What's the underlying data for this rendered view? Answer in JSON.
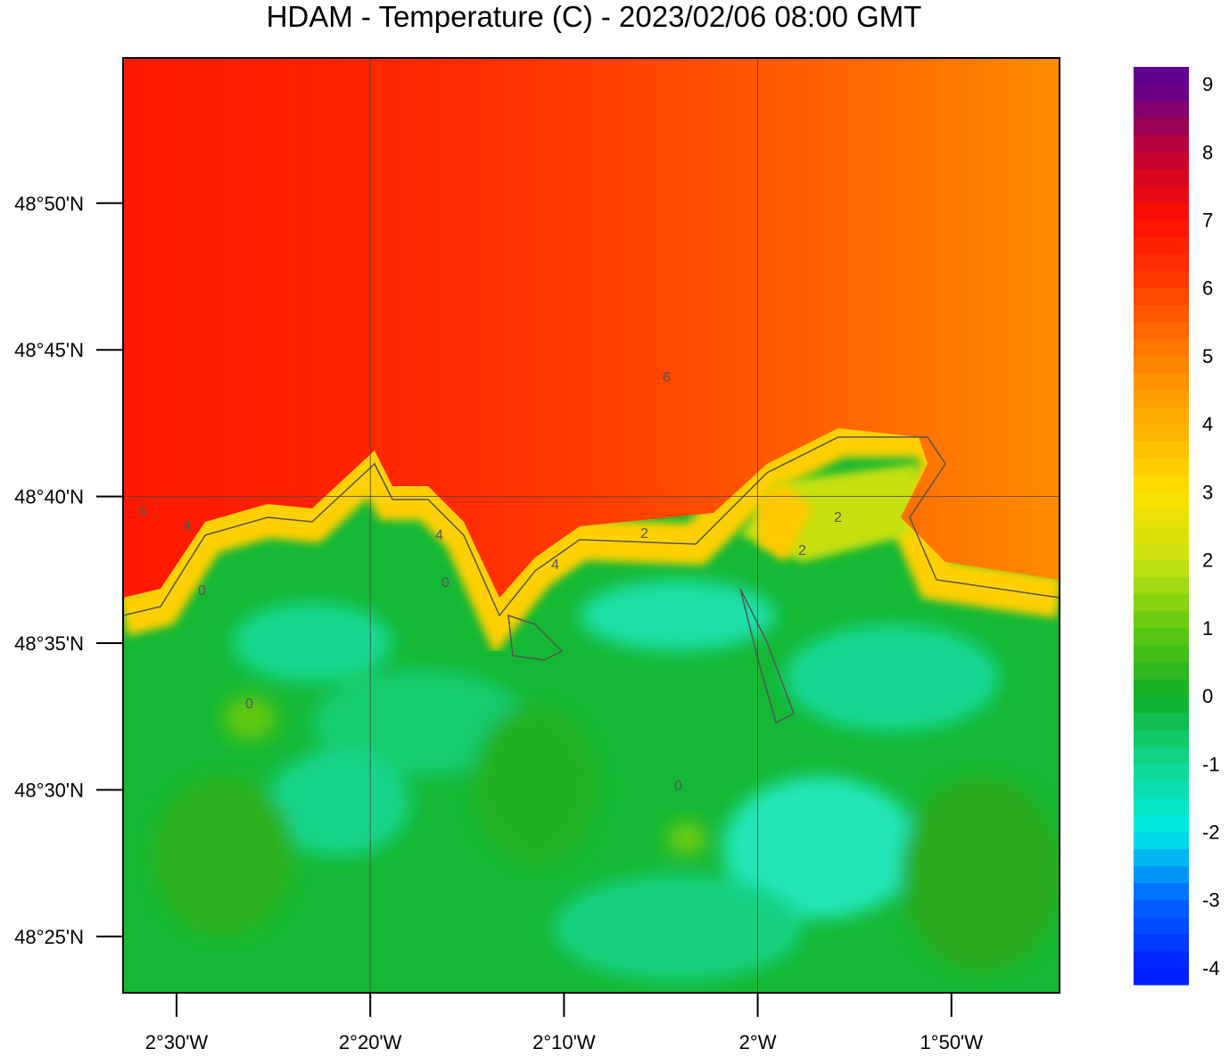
{
  "title": "HDAM - Temperature (C)  -  2023/02/06  08:00 GMT",
  "x_axis": {
    "lim": [
      -152.76,
      -104.42
    ],
    "ticks": [
      {
        "value": -150,
        "label": "2°30'W"
      },
      {
        "value": -140,
        "label": "2°20'W"
      },
      {
        "value": -130,
        "label": "2°10'W"
      },
      {
        "value": -120,
        "label": "2°W"
      },
      {
        "value": -110,
        "label": "1°50'W"
      }
    ],
    "grid": [
      -140,
      -120
    ]
  },
  "y_axis": {
    "lim": [
      2903.08,
      2934.95
    ],
    "ticks": [
      {
        "value": 2930,
        "label": "48°50'N"
      },
      {
        "value": 2925,
        "label": "48°45'N"
      },
      {
        "value": 2920,
        "label": "48°40'N"
      },
      {
        "value": 2915,
        "label": "48°35'N"
      },
      {
        "value": 2910,
        "label": "48°30'N"
      },
      {
        "value": 2905,
        "label": "48°25'N"
      }
    ],
    "grid": [
      2920
    ]
  },
  "colorbar": {
    "range": [
      -4.25,
      9.25
    ],
    "step": 0.25,
    "ticks": [
      -4,
      -3,
      -2,
      -1,
      0,
      1,
      2,
      3,
      4,
      5,
      6,
      7,
      8,
      9
    ]
  },
  "contour_labels": [
    "6",
    "4",
    "0",
    "4",
    "2",
    "2",
    "2",
    "0",
    "6",
    "4",
    "0",
    "0"
  ]
}
